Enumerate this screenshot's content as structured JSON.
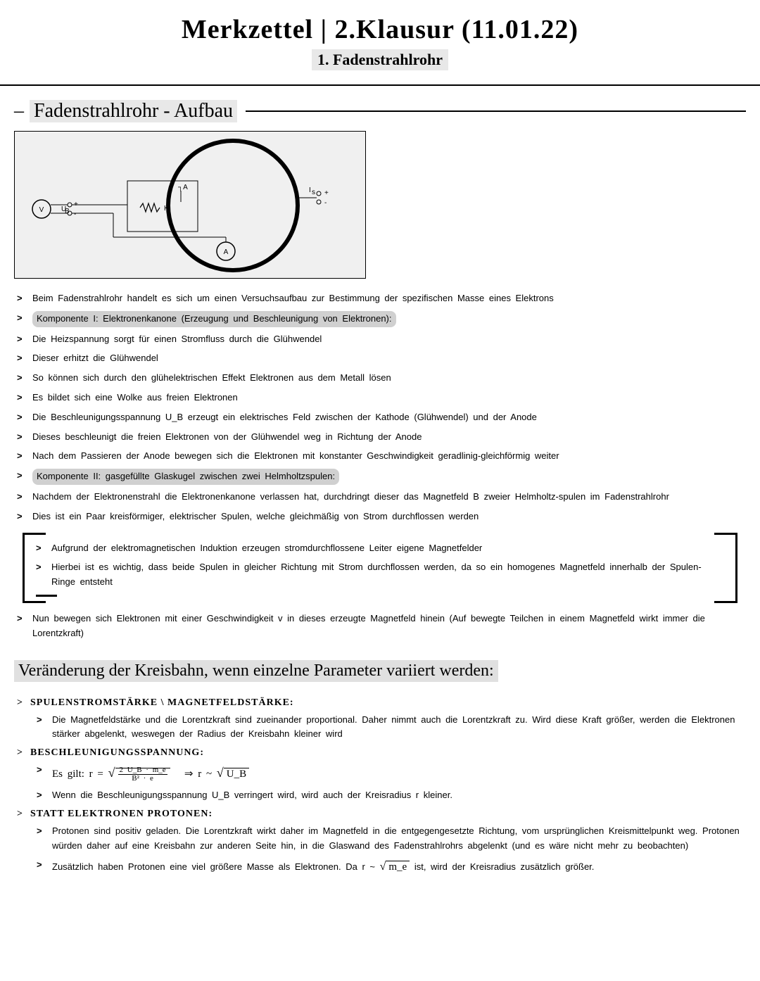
{
  "header": {
    "title": "Merkzettel | 2.Klausur (11.01.22)",
    "subtitle": "1. Fadenstrahlrohr"
  },
  "section1": {
    "heading": "Fadenstrahlrohr - Aufbau",
    "diagram": {
      "labels": {
        "voltmeter": "V",
        "ammeter": "A",
        "ub_plus": "U_B",
        "k": "K",
        "anode_arrow": "┐A",
        "is_plus": "I_s",
        "plus": "+",
        "minus": "-"
      }
    },
    "lines": [
      "Beim Fadenstrahlrohr handelt es sich um einen Versuchsaufbau zur Bestimmung der spezifischen Masse eines Elektrons",
      {
        "highlight": true,
        "text": "Komponente I: Elektronenkanone (Erzeugung und Beschleunigung von Elektronen):"
      },
      "Die Heizspannung sorgt für einen Stromfluss durch die Glühwendel",
      "Dieser erhitzt die Glühwendel",
      "So können sich durch den glühelektrischen Effekt Elektronen aus dem Metall lösen",
      "Es bildet sich eine Wolke aus freien Elektronen",
      "Die Beschleunigungsspannung U_B erzeugt ein elektrisches Feld zwischen der Kathode (Glühwendel) und der Anode",
      "Dieses beschleunigt die freien Elektronen von der Glühwendel weg in Richtung der Anode",
      "Nach dem Passieren der Anode bewegen sich die Elektronen mit konstanter Geschwindigkeit geradlinig-gleichförmig weiter",
      {
        "highlight": true,
        "text": "Komponente II: gasgefüllte Glaskugel zwischen zwei Helmholtzspulen:"
      },
      "Nachdem der Elektronenstrahl die Elektronenkanone verlassen hat, durchdringt dieser das Magnetfeld B zweier Helmholtz-spulen im Fadenstrahlrohr",
      "Dies ist ein Paar kreisförmiger, elektrischer Spulen, welche gleichmäßig von Strom durchflossen werden"
    ],
    "box": [
      "Aufgrund der elektromagnetischen Induktion erzeugen stromdurchflossene Leiter eigene Magnetfelder",
      "Hierbei ist es wichtig, dass beide Spulen in gleicher Richtung mit Strom durchflossen werden, da so ein homogenes Magnetfeld innerhalb der Spulen-Ringe entsteht"
    ],
    "after_box": [
      "Nun bewegen sich Elektronen mit einer Geschwindigkeit v in dieses erzeugte Magnetfeld hinein (Auf bewegte Teilchen in einem Magnetfeld wirkt immer die Lorentzkraft)"
    ]
  },
  "section2": {
    "heading": "Veränderung der Kreisbahn, wenn einzelne Parameter variiert werden:",
    "groups": [
      {
        "title": "SPULENSTROMSTÄRKE \\ MAGNETFELDSTÄRKE:",
        "items": [
          "Die Magnetfeldstärke und die Lorentzkraft sind zueinander proportional. Daher nimmt auch die Lorentzkraft zu. Wird diese Kraft größer, werden die Elektronen stärker abgelenkt, weswegen der Radius der Kreisbahn kleiner wird"
        ]
      },
      {
        "title": "BESCHLEUNIGUNGSSPANNUNG:",
        "items": [
          {
            "formula": true,
            "prefix": "Es gilt:   r = ",
            "root1": "2 U_B · m_e",
            "denom": "B² · e",
            "arrow": "⇒  r ~ ",
            "root2": "U_B"
          },
          "Wenn die Beschleunigungsspannung U_B verringert wird, wird auch der Kreisradius r kleiner."
        ]
      },
      {
        "title": "STATT ELEKTRONEN PROTONEN:",
        "items": [
          "Protonen sind positiv geladen. Die Lorentzkraft wirkt daher im Magnetfeld in die entgegengesetzte Richtung, vom ursprünglichen Kreismittelpunkt weg. Protonen würden daher auf eine Kreisbahn zur anderen Seite hin, in die Glaswand des Fadenstrahlrohrs abgelenkt (und es wäre nicht mehr zu beobachten)",
          {
            "formula2": true,
            "prefix": "Zusätzlich haben Protonen eine viel größere Masse als Elektronen. Da  r ~ ",
            "root": "m_e",
            "suffix": " ist, wird der Kreisradius zusätzlich größer."
          }
        ]
      }
    ]
  }
}
